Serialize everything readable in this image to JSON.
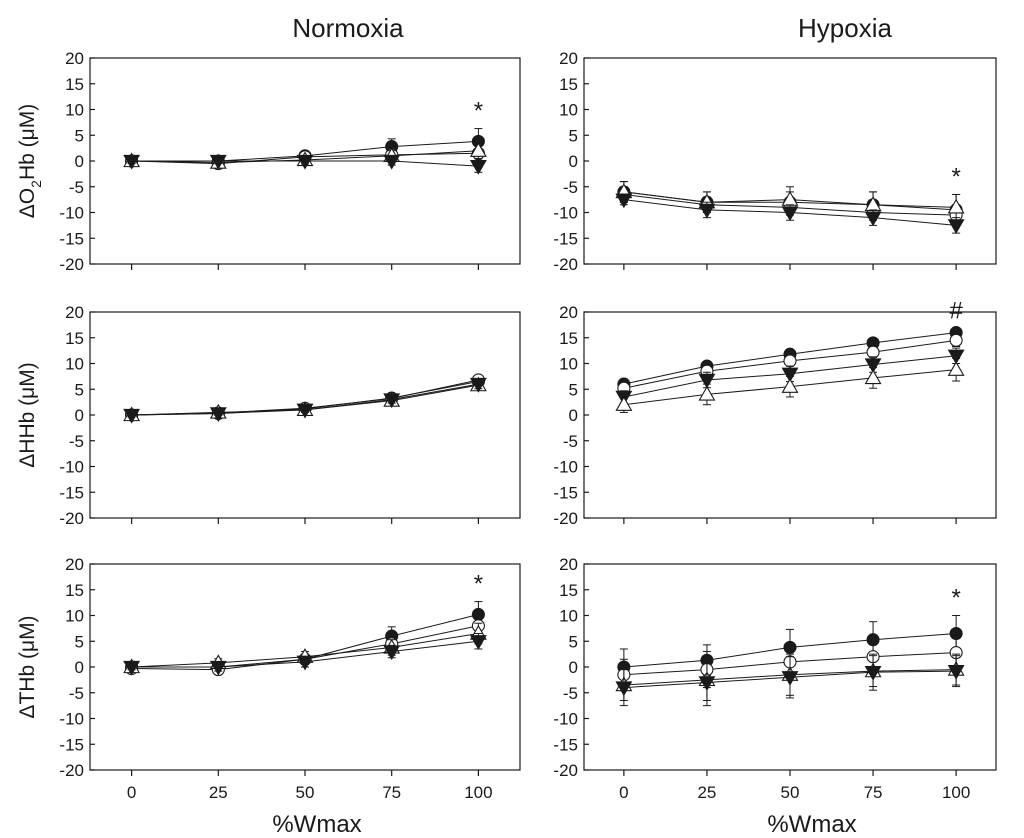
{
  "figure": {
    "column_titles": [
      "Normoxia",
      "Hypoxia"
    ],
    "xlabel": "%Wmax"
  },
  "chart_data": [
    {
      "type": "line",
      "panel": "normoxia-o2hb",
      "title": "Normoxia",
      "xlabel": "",
      "ylabel": "ΔO2Hb (μM)",
      "x": [
        0,
        25,
        50,
        75,
        100
      ],
      "xlim": [
        -12,
        112
      ],
      "ylim": [
        -20,
        20
      ],
      "xticks": [
        0,
        25,
        50,
        75,
        100
      ],
      "yticks": [
        20,
        15,
        10,
        5,
        0,
        -5,
        -10,
        -15,
        -20
      ],
      "annotation": "*",
      "grid": false,
      "series": [
        {
          "marker": "filled-circle",
          "values": [
            0,
            0,
            1,
            2.8,
            3.8
          ],
          "errors": [
            0.5,
            0.5,
            0.8,
            1.5,
            2.5
          ]
        },
        {
          "marker": "open-circle",
          "values": [
            0,
            -0.5,
            0.8,
            1.2,
            1.5
          ],
          "errors": [
            0.5,
            0.5,
            0.6,
            1.2,
            1.5
          ]
        },
        {
          "marker": "open-triangle",
          "values": [
            0,
            -0.3,
            0.2,
            1,
            2
          ],
          "errors": [
            0.5,
            0.5,
            0.6,
            1,
            1.5
          ]
        },
        {
          "marker": "filled-triangle-down",
          "values": [
            0,
            0,
            0,
            0,
            -1
          ],
          "errors": [
            0.5,
            0.5,
            0.6,
            0.8,
            1.2
          ]
        }
      ]
    },
    {
      "type": "line",
      "panel": "hypoxia-o2hb",
      "title": "Hypoxia",
      "xlabel": "",
      "ylabel": "",
      "x": [
        0,
        25,
        50,
        75,
        100
      ],
      "xlim": [
        -12,
        112
      ],
      "ylim": [
        -20,
        20
      ],
      "xticks": [
        0,
        25,
        50,
        75,
        100
      ],
      "yticks": [
        20,
        15,
        10,
        5,
        0,
        -5,
        -10,
        -15,
        -20
      ],
      "annotation": "*",
      "grid": false,
      "series": [
        {
          "marker": "filled-circle",
          "values": [
            -6,
            -8,
            -8,
            -8.5,
            -9.5
          ],
          "errors": [
            2,
            2,
            2,
            2.5,
            3
          ]
        },
        {
          "marker": "open-circle",
          "values": [
            -6.5,
            -8.5,
            -9,
            -10,
            -10.5
          ],
          "errors": [
            1.5,
            1.5,
            1.5,
            1.5,
            2
          ]
        },
        {
          "marker": "open-triangle",
          "values": [
            -6,
            -8,
            -7.5,
            -8.5,
            -9
          ],
          "errors": [
            2,
            2,
            2.5,
            2.5,
            2.5
          ]
        },
        {
          "marker": "filled-triangle-down",
          "values": [
            -7.5,
            -9.5,
            -10,
            -11,
            -12.5
          ],
          "errors": [
            1,
            1.5,
            1.5,
            1.5,
            1.5
          ]
        }
      ]
    },
    {
      "type": "line",
      "panel": "normoxia-hhb",
      "title": "",
      "xlabel": "",
      "ylabel": "ΔHHb (μM)",
      "x": [
        0,
        25,
        50,
        75,
        100
      ],
      "xlim": [
        -12,
        112
      ],
      "ylim": [
        -20,
        20
      ],
      "xticks": [
        0,
        25,
        50,
        75,
        100
      ],
      "yticks": [
        20,
        15,
        10,
        5,
        0,
        -5,
        -10,
        -15,
        -20
      ],
      "annotation": "",
      "grid": false,
      "series": [
        {
          "marker": "filled-circle",
          "values": [
            0,
            0.3,
            1.2,
            3.3,
            6.5
          ],
          "errors": [
            0.4,
            0.4,
            0.5,
            0.7,
            0.9
          ]
        },
        {
          "marker": "open-circle",
          "values": [
            0,
            0.4,
            1.3,
            3.2,
            6.8
          ],
          "errors": [
            0.4,
            0.4,
            0.5,
            0.7,
            0.9
          ]
        },
        {
          "marker": "open-triangle",
          "values": [
            0,
            0.5,
            1,
            2.8,
            5.8
          ],
          "errors": [
            0.4,
            0.4,
            0.5,
            0.7,
            0.9
          ]
        },
        {
          "marker": "filled-triangle-down",
          "values": [
            0,
            0.3,
            1,
            3,
            6
          ],
          "errors": [
            0.4,
            0.4,
            0.5,
            0.7,
            0.9
          ]
        }
      ]
    },
    {
      "type": "line",
      "panel": "hypoxia-hhb",
      "title": "",
      "xlabel": "",
      "ylabel": "",
      "x": [
        0,
        25,
        50,
        75,
        100
      ],
      "xlim": [
        -12,
        112
      ],
      "ylim": [
        -20,
        20
      ],
      "xticks": [
        0,
        25,
        50,
        75,
        100
      ],
      "yticks": [
        20,
        15,
        10,
        5,
        0,
        -5,
        -10,
        -15,
        -20
      ],
      "annotation": "#",
      "grid": false,
      "series": [
        {
          "marker": "filled-circle",
          "values": [
            6,
            9.5,
            11.8,
            14,
            16
          ],
          "errors": [
            1,
            0.8,
            0.8,
            0.8,
            0.8
          ]
        },
        {
          "marker": "open-circle",
          "values": [
            5.2,
            8.5,
            10.5,
            12.2,
            14.5
          ],
          "errors": [
            1,
            1,
            1,
            1,
            1.2
          ]
        },
        {
          "marker": "filled-triangle-down",
          "values": [
            3.5,
            6.8,
            8,
            9.8,
            11.5
          ],
          "errors": [
            1.2,
            1.5,
            1.5,
            1.5,
            1.5
          ]
        },
        {
          "marker": "open-triangle",
          "values": [
            2,
            4,
            5.5,
            7.2,
            8.8
          ],
          "errors": [
            1.5,
            2,
            2,
            2,
            2.2
          ]
        }
      ]
    },
    {
      "type": "line",
      "panel": "normoxia-thb",
      "title": "",
      "xlabel": "%Wmax",
      "ylabel": "ΔTHb (μM)",
      "x": [
        0,
        25,
        50,
        75,
        100
      ],
      "xlim": [
        -12,
        112
      ],
      "ylim": [
        -20,
        20
      ],
      "xticks": [
        0,
        25,
        50,
        75,
        100
      ],
      "yticks": [
        20,
        15,
        10,
        5,
        0,
        -5,
        -10,
        -15,
        -20
      ],
      "annotation": "*",
      "grid": false,
      "series": [
        {
          "marker": "filled-circle",
          "values": [
            0,
            0,
            1.5,
            6,
            10.2
          ],
          "errors": [
            0.5,
            0.8,
            1,
            1.8,
            2.5
          ]
        },
        {
          "marker": "open-circle",
          "values": [
            -0.3,
            -0.5,
            1.5,
            4.5,
            8
          ],
          "errors": [
            0.5,
            0.8,
            1,
            1.5,
            2
          ]
        },
        {
          "marker": "open-triangle",
          "values": [
            0,
            0.8,
            2,
            3.8,
            6.5
          ],
          "errors": [
            0.5,
            0.8,
            1,
            1.5,
            2
          ]
        },
        {
          "marker": "filled-triangle-down",
          "values": [
            0,
            0,
            1,
            3,
            5
          ],
          "errors": [
            0.5,
            0.8,
            1,
            1.2,
            1.5
          ]
        }
      ]
    },
    {
      "type": "line",
      "panel": "hypoxia-thb",
      "title": "",
      "xlabel": "%Wmax",
      "ylabel": "",
      "x": [
        0,
        25,
        50,
        75,
        100
      ],
      "xlim": [
        -12,
        112
      ],
      "ylim": [
        -20,
        20
      ],
      "xticks": [
        0,
        25,
        50,
        75,
        100
      ],
      "yticks": [
        20,
        15,
        10,
        5,
        0,
        -5,
        -10,
        -15,
        -20
      ],
      "annotation": "*",
      "grid": false,
      "series": [
        {
          "marker": "filled-circle",
          "values": [
            0,
            1.3,
            3.8,
            5.3,
            6.5
          ],
          "errors": [
            3.5,
            3,
            3.5,
            3.5,
            3.5
          ]
        },
        {
          "marker": "open-circle",
          "values": [
            -1.5,
            -0.5,
            1,
            2,
            2.8
          ],
          "errors": [
            3,
            3.5,
            3.5,
            3,
            3
          ]
        },
        {
          "marker": "open-triangle",
          "values": [
            -3.5,
            -2.5,
            -1.5,
            -0.8,
            -0.5
          ],
          "errors": [
            3,
            4,
            4,
            3,
            3
          ]
        },
        {
          "marker": "filled-triangle-down",
          "values": [
            -4,
            -3,
            -2,
            -1,
            -0.8
          ],
          "errors": [
            3.5,
            4.5,
            4,
            3.5,
            3
          ]
        }
      ]
    }
  ]
}
